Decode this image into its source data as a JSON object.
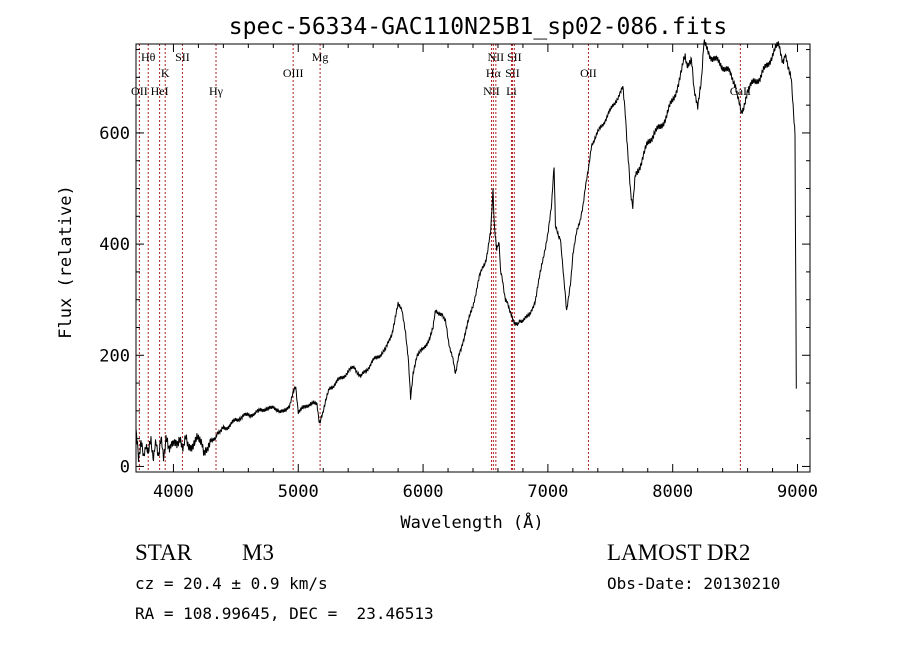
{
  "chart_data": {
    "type": "line",
    "title": "spec-56334-GAC110N25B1_sp02-086.fits",
    "xlabel": "Wavelength (Å)",
    "ylabel": "Flux (relative)",
    "xlim": [
      3700,
      9100
    ],
    "ylim": [
      -10,
      760
    ],
    "x_ticks": [
      4000,
      5000,
      6000,
      7000,
      8000,
      9000
    ],
    "y_ticks": [
      0,
      200,
      400,
      600
    ],
    "grid": false,
    "series": [
      {
        "color": "#000000",
        "points": [
          [
            3700,
            60
          ],
          [
            3720,
            15
          ],
          [
            3740,
            50
          ],
          [
            3760,
            10
          ],
          [
            3780,
            45
          ],
          [
            3800,
            20
          ],
          [
            3820,
            50
          ],
          [
            3840,
            15
          ],
          [
            3860,
            40
          ],
          [
            3880,
            25
          ],
          [
            3900,
            45
          ],
          [
            3920,
            20
          ],
          [
            3940,
            50
          ],
          [
            3960,
            30
          ],
          [
            3980,
            45
          ],
          [
            4000,
            35
          ],
          [
            4020,
            50
          ],
          [
            4040,
            40
          ],
          [
            4060,
            45
          ],
          [
            4080,
            38
          ],
          [
            4100,
            48
          ],
          [
            4120,
            42
          ],
          [
            4150,
            40
          ],
          [
            4180,
            50
          ],
          [
            4200,
            45
          ],
          [
            4230,
            40
          ],
          [
            4250,
            28
          ],
          [
            4270,
            22
          ],
          [
            4300,
            45
          ],
          [
            4330,
            50
          ],
          [
            4350,
            60
          ],
          [
            4380,
            62
          ],
          [
            4400,
            70
          ],
          [
            4450,
            72
          ],
          [
            4500,
            85
          ],
          [
            4550,
            88
          ],
          [
            4600,
            95
          ],
          [
            4650,
            92
          ],
          [
            4700,
            105
          ],
          [
            4750,
            100
          ],
          [
            4800,
            110
          ],
          [
            4850,
            95
          ],
          [
            4900,
            105
          ],
          [
            4930,
            110
          ],
          [
            4960,
            135
          ],
          [
            4980,
            140
          ],
          [
            5000,
            100
          ],
          [
            5050,
            105
          ],
          [
            5100,
            115
          ],
          [
            5150,
            110
          ],
          [
            5170,
            80
          ],
          [
            5200,
            100
          ],
          [
            5250,
            140
          ],
          [
            5300,
            150
          ],
          [
            5350,
            160
          ],
          [
            5400,
            170
          ],
          [
            5450,
            180
          ],
          [
            5500,
            160
          ],
          [
            5550,
            175
          ],
          [
            5600,
            190
          ],
          [
            5650,
            200
          ],
          [
            5700,
            210
          ],
          [
            5750,
            240
          ],
          [
            5800,
            290
          ],
          [
            5830,
            280
          ],
          [
            5860,
            240
          ],
          [
            5880,
            200
          ],
          [
            5900,
            120
          ],
          [
            5920,
            170
          ],
          [
            5950,
            200
          ],
          [
            6000,
            210
          ],
          [
            6050,
            230
          ],
          [
            6080,
            250
          ],
          [
            6100,
            280
          ],
          [
            6150,
            275
          ],
          [
            6180,
            260
          ],
          [
            6200,
            230
          ],
          [
            6240,
            190
          ],
          [
            6260,
            170
          ],
          [
            6280,
            190
          ],
          [
            6300,
            210
          ],
          [
            6350,
            250
          ],
          [
            6400,
            290
          ],
          [
            6450,
            340
          ],
          [
            6500,
            370
          ],
          [
            6520,
            390
          ],
          [
            6540,
            420
          ],
          [
            6560,
            500
          ],
          [
            6570,
            440
          ],
          [
            6590,
            390
          ],
          [
            6610,
            400
          ],
          [
            6620,
            350
          ],
          [
            6640,
            330
          ],
          [
            6660,
            300
          ],
          [
            6700,
            280
          ],
          [
            6730,
            260
          ],
          [
            6760,
            255
          ],
          [
            6800,
            265
          ],
          [
            6850,
            270
          ],
          [
            6900,
            300
          ],
          [
            6950,
            360
          ],
          [
            7000,
            420
          ],
          [
            7030,
            470
          ],
          [
            7050,
            540
          ],
          [
            7060,
            430
          ],
          [
            7100,
            410
          ],
          [
            7130,
            330
          ],
          [
            7150,
            280
          ],
          [
            7180,
            330
          ],
          [
            7200,
            380
          ],
          [
            7230,
            420
          ],
          [
            7260,
            440
          ],
          [
            7300,
            500
          ],
          [
            7330,
            540
          ],
          [
            7350,
            580
          ],
          [
            7400,
            600
          ],
          [
            7450,
            620
          ],
          [
            7500,
            640
          ],
          [
            7550,
            660
          ],
          [
            7600,
            680
          ],
          [
            7620,
            640
          ],
          [
            7640,
            560
          ],
          [
            7660,
            500
          ],
          [
            7680,
            470
          ],
          [
            7700,
            520
          ],
          [
            7750,
            550
          ],
          [
            7800,
            580
          ],
          [
            7850,
            600
          ],
          [
            7900,
            610
          ],
          [
            7950,
            630
          ],
          [
            8000,
            660
          ],
          [
            8050,
            690
          ],
          [
            8080,
            720
          ],
          [
            8100,
            740
          ],
          [
            8120,
            720
          ],
          [
            8150,
            730
          ],
          [
            8170,
            680
          ],
          [
            8200,
            650
          ],
          [
            8230,
            700
          ],
          [
            8250,
            760
          ],
          [
            8300,
            740
          ],
          [
            8350,
            730
          ],
          [
            8400,
            720
          ],
          [
            8450,
            710
          ],
          [
            8500,
            690
          ],
          [
            8530,
            660
          ],
          [
            8550,
            630
          ],
          [
            8570,
            650
          ],
          [
            8600,
            680
          ],
          [
            8650,
            690
          ],
          [
            8700,
            700
          ],
          [
            8750,
            720
          ],
          [
            8800,
            740
          ],
          [
            8850,
            760
          ],
          [
            8880,
            730
          ],
          [
            8900,
            740
          ],
          [
            8920,
            720
          ],
          [
            8950,
            700
          ],
          [
            8980,
            600
          ],
          [
            8990,
            140
          ]
        ]
      }
    ],
    "annotations": [
      {
        "label": "Hθ",
        "x": 3798,
        "row": 0
      },
      {
        "label": "OII",
        "x": 3727,
        "row": 2
      },
      {
        "label": "HeI",
        "x": 3889,
        "row": 2
      },
      {
        "label": "K",
        "x": 3934,
        "row": 1
      },
      {
        "label": "SII",
        "x": 4072,
        "row": 0
      },
      {
        "label": "Hγ",
        "x": 4341,
        "row": 2
      },
      {
        "label": "OIII",
        "x": 4959,
        "row": 1
      },
      {
        "label": "Mg",
        "x": 5175,
        "row": 0
      },
      {
        "label": "NII",
        "x": 6548,
        "row": 2
      },
      {
        "label": "Hα",
        "x": 6563,
        "row": 1
      },
      {
        "label": "NII",
        "x": 6583,
        "row": 0
      },
      {
        "label": "SII",
        "x": 6716,
        "row": 1
      },
      {
        "label": "SII",
        "x": 6731,
        "row": 0
      },
      {
        "label": "Li",
        "x": 6708,
        "row": 2
      },
      {
        "label": "OII",
        "x": 7325,
        "row": 1
      },
      {
        "label": "CaII",
        "x": 8542,
        "row": 2
      }
    ],
    "line_color": "#b02020"
  },
  "info": {
    "object_class": "STAR",
    "subclass": "M3",
    "survey": "LAMOST DR2",
    "cz": "cz = 20.4 ± 0.9 km/s",
    "obs_date": "Obs-Date: 20130210",
    "coords": "RA = 108.99645, DEC =  23.46513"
  }
}
